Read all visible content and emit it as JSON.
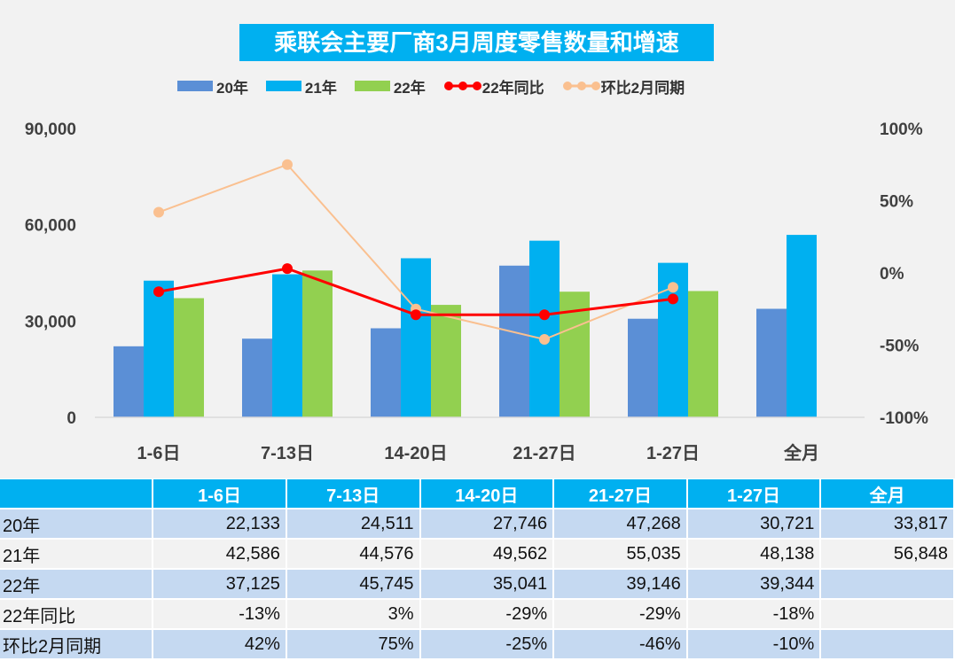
{
  "chart_data": {
    "type": "bar",
    "title": "乘联会主要厂商3月周度零售数量和增速",
    "categories": [
      "1-6日",
      "7-13日",
      "14-20日",
      "21-27日",
      "1-27日",
      "全月"
    ],
    "series": [
      {
        "name": "20年",
        "type": "bar",
        "axis": "left",
        "color": "#5b8fd6",
        "values": [
          22133,
          24511,
          27746,
          47268,
          30721,
          33817
        ]
      },
      {
        "name": "21年",
        "type": "bar",
        "axis": "left",
        "color": "#00b0f0",
        "values": [
          42586,
          44576,
          49562,
          55035,
          48138,
          56848
        ]
      },
      {
        "name": "22年",
        "type": "bar",
        "axis": "left",
        "color": "#92d050",
        "values": [
          37125,
          45745,
          35041,
          39146,
          39344,
          null
        ]
      },
      {
        "name": "22年同比",
        "type": "line",
        "axis": "right",
        "color": "#ff0000",
        "values": [
          -13,
          3,
          -29,
          -29,
          -18,
          null
        ]
      },
      {
        "name": "环比2月同期",
        "type": "line",
        "axis": "right",
        "color": "#fac090",
        "values": [
          42,
          75,
          -25,
          -46,
          -10,
          null
        ]
      }
    ],
    "left_axis": {
      "ylim": [
        0,
        90000
      ],
      "ticks": [
        "0",
        "30,000",
        "60,000",
        "90,000"
      ]
    },
    "right_axis": {
      "ylim": [
        -100,
        100
      ],
      "ticks": [
        "-100%",
        "-50%",
        "0%",
        "50%",
        "100%"
      ]
    },
    "legend": "top",
    "grid": false
  },
  "table": {
    "headers": [
      "",
      "1-6日",
      "7-13日",
      "14-20日",
      "21-27日",
      "1-27日",
      "全月"
    ],
    "rows": [
      [
        "20年",
        "22,133",
        "24,511",
        "27,746",
        "47,268",
        "30,721",
        "33,817"
      ],
      [
        "21年",
        "42,586",
        "44,576",
        "49,562",
        "55,035",
        "48,138",
        "56,848"
      ],
      [
        "22年",
        "37,125",
        "45,745",
        "35,041",
        "39,146",
        "39,344",
        ""
      ],
      [
        "22年同比",
        "-13%",
        "3%",
        "-29%",
        "-29%",
        "-18%",
        ""
      ],
      [
        "环比2月同期",
        "42%",
        "75%",
        "-25%",
        "-46%",
        "-10%",
        ""
      ]
    ]
  }
}
